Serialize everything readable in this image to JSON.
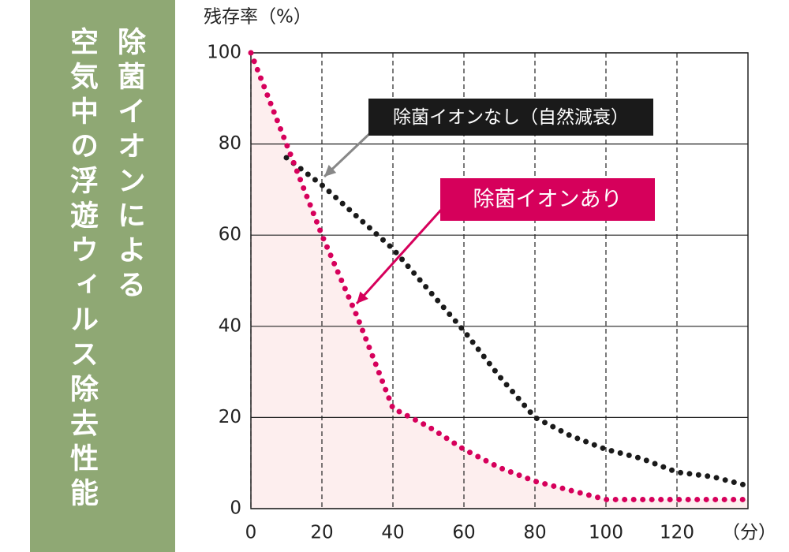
{
  "chart_data": {
    "type": "line",
    "title": [
      "除菌イオンによる",
      "空気中の浮遊ウィルス除去性能"
    ],
    "ylabel": "残存率（%）",
    "xlabel": "（分）",
    "xlim": [
      0,
      140
    ],
    "xticks": [
      0,
      20,
      40,
      60,
      80,
      100,
      120
    ],
    "ylim": [
      0,
      100
    ],
    "yticks": [
      0,
      20,
      40,
      60,
      80,
      100
    ],
    "grid": true,
    "series": [
      {
        "name": "除菌イオンなし（自然減衰）",
        "color": "#1a1a1a",
        "x": [
          10,
          20,
          30,
          40,
          50,
          60,
          70,
          80,
          90,
          100,
          110,
          120,
          130,
          140
        ],
        "values": [
          77,
          71,
          64,
          57,
          48,
          39,
          29,
          20,
          16,
          13,
          11,
          8,
          7,
          5
        ]
      },
      {
        "name": "除菌イオンあり",
        "color": "#d6005b",
        "x": [
          0,
          10,
          20,
          30,
          40,
          50,
          60,
          70,
          80,
          90,
          100,
          110,
          120,
          130,
          140
        ],
        "values": [
          100,
          80,
          60,
          42,
          22,
          18,
          13,
          9,
          6,
          4,
          2,
          2,
          2,
          2,
          2
        ]
      }
    ]
  }
}
